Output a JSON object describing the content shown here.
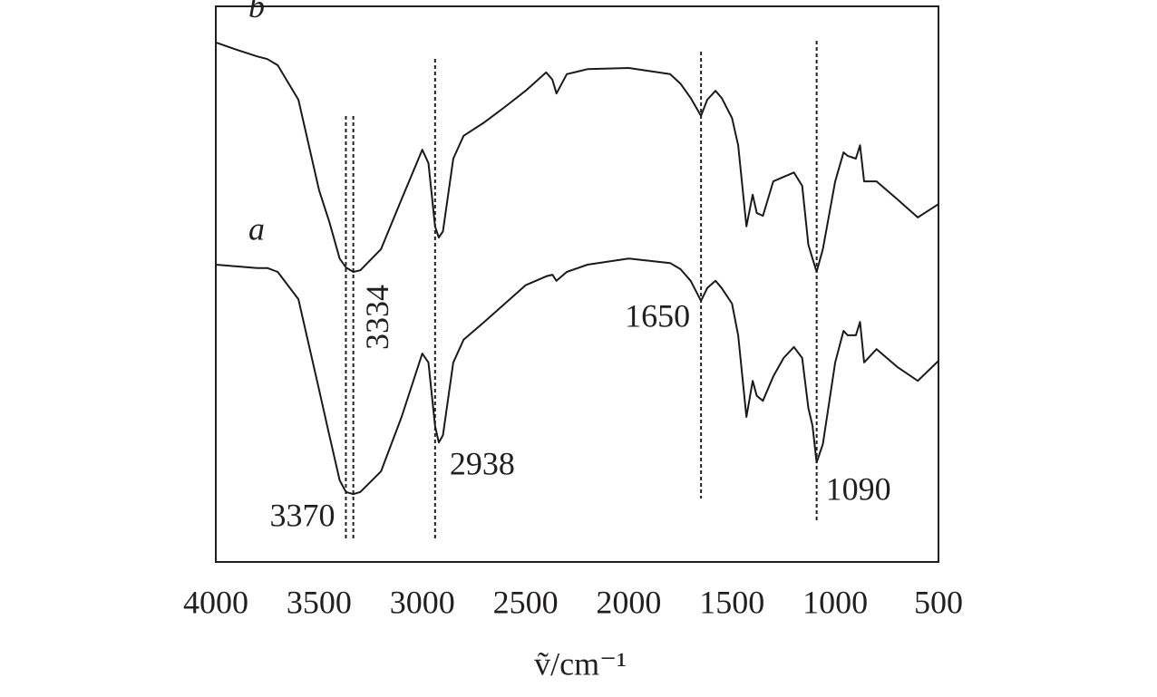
{
  "chart_data": {
    "type": "line",
    "x_label": "ṽ/cm⁻¹",
    "x": [
      4000,
      3900,
      3800,
      3750,
      3700,
      3600,
      3500,
      3450,
      3400,
      3370,
      3334,
      3300,
      3200,
      3100,
      3000,
      2970,
      2938,
      2920,
      2900,
      2850,
      2800,
      2700,
      2600,
      2500,
      2400,
      2370,
      2350,
      2300,
      2200,
      2000,
      1800,
      1750,
      1700,
      1650,
      1620,
      1580,
      1550,
      1500,
      1470,
      1430,
      1400,
      1380,
      1350,
      1300,
      1250,
      1200,
      1160,
      1130,
      1110,
      1090,
      1060,
      1000,
      960,
      940,
      900,
      880,
      860,
      800,
      700,
      600,
      500
    ],
    "series": [
      {
        "name": "b",
        "color": "#1a1a1a",
        "values": [
          93.5,
          92.2,
          91.0,
          90.5,
          89.4,
          83.2,
          66.9,
          61.2,
          54.6,
          53.0,
          52.2,
          52.5,
          56.3,
          65.3,
          74.2,
          71.8,
          60.4,
          58.4,
          59.5,
          72.6,
          76.7,
          79.1,
          81.9,
          84.8,
          88.1,
          86.8,
          84.3,
          87.8,
          88.7,
          88.9,
          87.8,
          86.1,
          83.5,
          80.3,
          83.2,
          84.8,
          83.5,
          79.9,
          75.0,
          60.4,
          66.1,
          62.8,
          62.3,
          68.5,
          69.3,
          70.1,
          67.7,
          57.1,
          54.6,
          52.2,
          56.3,
          68.5,
          73.7,
          73.1,
          72.6,
          75.0,
          68.5,
          68.5,
          65.3,
          62.0,
          64.4
        ]
      },
      {
        "name": "a",
        "color": "#1a1a1a",
        "values": [
          53.5,
          53.2,
          52.9,
          52.9,
          52.2,
          47.3,
          31.0,
          22.8,
          14.7,
          12.6,
          12.2,
          12.6,
          16.3,
          26.1,
          37.5,
          35.9,
          24.5,
          21.5,
          22.8,
          35.9,
          40.0,
          43.2,
          46.5,
          49.8,
          51.4,
          51.7,
          50.6,
          52.2,
          53.5,
          54.6,
          53.8,
          52.7,
          50.6,
          47.0,
          49.3,
          50.6,
          49.3,
          46.5,
          40.8,
          26.1,
          32.6,
          29.9,
          29.0,
          33.4,
          36.7,
          38.7,
          36.7,
          27.7,
          24.5,
          17.9,
          21.2,
          35.9,
          41.6,
          40.8,
          40.8,
          43.2,
          35.9,
          38.3,
          35.1,
          32.6,
          36.2
        ]
      }
    ],
    "peaks": [
      {
        "value": 3370,
        "label": "3370"
      },
      {
        "value": 3334,
        "label": "3334"
      },
      {
        "value": 2938,
        "label": "2938"
      },
      {
        "value": 1650,
        "label": "1650"
      },
      {
        "value": 1090,
        "label": "1090"
      }
    ],
    "xlim": [
      4000,
      500
    ],
    "xticks": [
      4000,
      3500,
      3000,
      2500,
      2000,
      1500,
      1000,
      500
    ],
    "ylim": [
      0,
      100
    ]
  }
}
